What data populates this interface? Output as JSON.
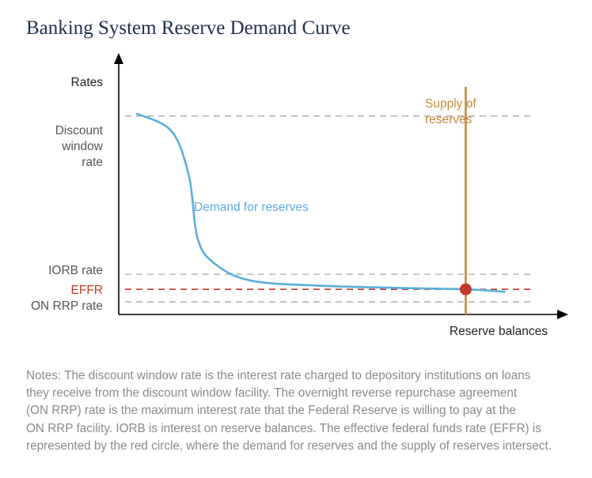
{
  "title": "Banking System Reserve Demand Curve",
  "colors": {
    "title": "#1f2f4e",
    "axis": "#000000",
    "demand": "#5aafe0",
    "supply": "#c48a3a",
    "effr": "#c0392b",
    "dashed_gray": "#b5b5b5",
    "label_gray": "#555555",
    "notes": "#8a8a8a"
  },
  "chart_data": {
    "type": "line",
    "title": "Banking System Reserve Demand Curve",
    "xlabel": "Reserve balances",
    "ylabel": "Rates",
    "x_ticks": [],
    "y_ticks": [
      "Discount window rate",
      "IORB rate",
      "EFFR",
      "ON RRP rate"
    ],
    "rate_levels": [
      {
        "name": "Discount window rate",
        "label_lines": [
          "Discount",
          "window",
          "rate"
        ],
        "style": "dashed",
        "color": "#b5b5b5",
        "relative_level": 0.79
      },
      {
        "name": "IORB rate",
        "label_lines": [
          "IORB rate"
        ],
        "style": "dashed",
        "color": "#b5b5b5",
        "relative_level": 0.16
      },
      {
        "name": "EFFR",
        "label_lines": [
          "EFFR"
        ],
        "style": "dashed",
        "color": "#c0392b",
        "relative_level": 0.1
      },
      {
        "name": "ON RRP rate",
        "label_lines": [
          "ON RRP rate"
        ],
        "style": "dashed",
        "color": "#b5b5b5",
        "relative_level": 0.05
      }
    ],
    "series": [
      {
        "name": "Demand for reserves",
        "label": "Demand for reserves",
        "color": "#5aafe0",
        "points_relative": [
          [
            0.04,
            0.8
          ],
          [
            0.12,
            0.73
          ],
          [
            0.16,
            0.55
          ],
          [
            0.18,
            0.3
          ],
          [
            0.22,
            0.2
          ],
          [
            0.3,
            0.135
          ],
          [
            0.45,
            0.115
          ],
          [
            0.65,
            0.105
          ],
          [
            0.79,
            0.1
          ],
          [
            0.88,
            0.09
          ]
        ]
      },
      {
        "name": "Supply of reserves",
        "label_lines": [
          "Supply of",
          "reserves"
        ],
        "color": "#c48a3a",
        "vertical_at_relative_x": 0.79
      }
    ],
    "annotations": [
      {
        "type": "point",
        "name": "EFFR intersection",
        "color": "#c0392b",
        "relative_x": 0.79,
        "relative_y": 0.1
      }
    ],
    "axis_ranges": "qualitative (no numeric values)",
    "grid": false,
    "legend": "none (inline labels)"
  },
  "notes": {
    "lines": [
      "Notes: The discount window rate is the interest rate charged to depository institutions on loans",
      "they receive from the discount window facility. The overnight reverse repurchase agreement",
      "(ON RRP) rate is the maximum interest rate that the Federal Reserve is willing to pay at the",
      "ON RRP facility. IORB is interest on reserve balances. The effective federal funds rate (EFFR) is",
      "represented by the red circle, where the demand for reserves and the supply of reserves intersect."
    ]
  }
}
